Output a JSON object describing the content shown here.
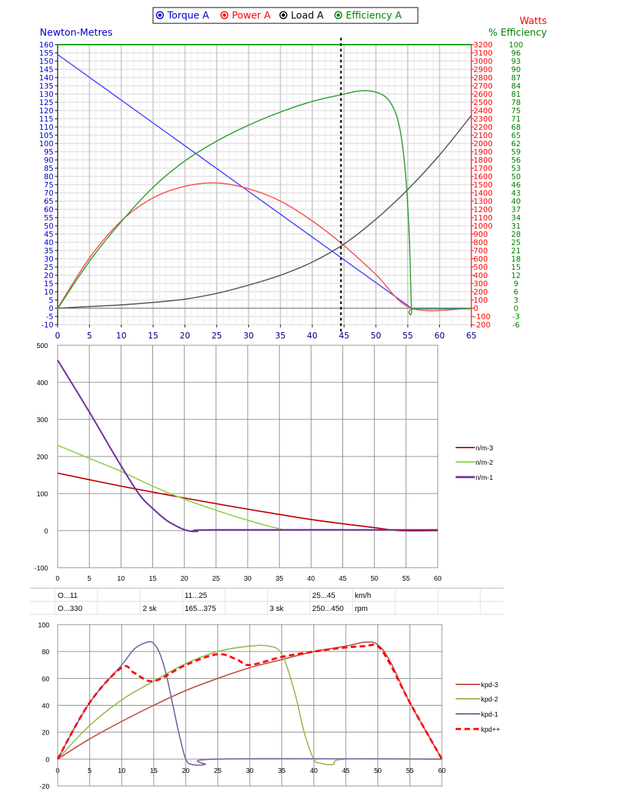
{
  "chart_data": [
    {
      "type": "line",
      "title": "",
      "legend": [
        {
          "name": "Torque  A",
          "color": "#3333ff"
        },
        {
          "name": "Power  A",
          "color": "#ff2020"
        },
        {
          "name": "Load  A",
          "color": "#000000"
        },
        {
          "name": "Efficiency  A",
          "color": "#00a000"
        }
      ],
      "ylabel_left": "Newton-Metres",
      "ylabel_right_watts": "Watts",
      "ylabel_right_eff": "% Efficiency",
      "xlim": [
        0,
        65
      ],
      "ylim_left": [
        -10,
        160
      ],
      "ylim_watts": [
        -200,
        3200
      ],
      "ylim_eff": [
        -6,
        100
      ],
      "x_ticks": [
        "0",
        "5",
        "10",
        "15",
        "20",
        "25",
        "30",
        "35",
        "40",
        "45",
        "50",
        "55",
        "60",
        "65"
      ],
      "y_left_ticks": [
        "160",
        "155",
        "150",
        "145",
        "140",
        "135",
        "130",
        "125",
        "120",
        "115",
        "110",
        "105",
        "100",
        "95",
        "90",
        "85",
        "80",
        "75",
        "70",
        "65",
        "60",
        "55",
        "50",
        "45",
        "40",
        "35",
        "30",
        "25",
        "20",
        "15",
        "10",
        "5",
        "0",
        "-5",
        "-10"
      ],
      "y_watts_ticks": [
        "3200",
        "3100",
        "3000",
        "2900",
        "2800",
        "2700",
        "2600",
        "2500",
        "2400",
        "2300",
        "2200",
        "2100",
        "2000",
        "1900",
        "1800",
        "1700",
        "1600",
        "1500",
        "1400",
        "1300",
        "1200",
        "1100",
        "1000",
        "900",
        "800",
        "700",
        "600",
        "500",
        "400",
        "300",
        "200",
        "100",
        "0",
        "-100",
        "-200"
      ],
      "y_eff_ticks": [
        "100",
        "96",
        "93",
        "90",
        "87",
        "84",
        "81",
        "78",
        "75",
        "71",
        "68",
        "65",
        "62",
        "59",
        "56",
        "53",
        "50",
        "46",
        "43",
        "40",
        "37",
        "34",
        "31",
        "28",
        "25",
        "21",
        "18",
        "15",
        "12",
        "9",
        "6",
        "3",
        "0",
        "-3",
        "-6"
      ],
      "marker_x": 44.5,
      "grid": true,
      "series": [
        {
          "name": "Torque  A",
          "color": "#4a4aff",
          "axis": "left",
          "x": [
            0,
            55.6,
            65
          ],
          "y": [
            154,
            0,
            0
          ]
        },
        {
          "name": "Power  A",
          "color": "#ff5050",
          "axis": "watts",
          "x": [
            0,
            5,
            10,
            15,
            20,
            25,
            30,
            35,
            40,
            45,
            50,
            55.6,
            65
          ],
          "y": [
            0,
            610,
            1060,
            1340,
            1480,
            1520,
            1450,
            1300,
            1060,
            760,
            410,
            0,
            0
          ]
        },
        {
          "name": "Load  A",
          "color": "#555555",
          "axis": "left",
          "x": [
            0,
            5,
            10,
            15,
            20,
            25,
            30,
            35,
            40,
            45,
            50,
            55,
            60,
            65
          ],
          "y": [
            0,
            1,
            2,
            3.5,
            5.5,
            9,
            14,
            20,
            28,
            39,
            54,
            72,
            93,
            117
          ]
        },
        {
          "name": "Efficiency  A",
          "color": "#33a033",
          "axis": "eff",
          "x": [
            0,
            5,
            10,
            15,
            20,
            25,
            30,
            35,
            40,
            44.5,
            47.5,
            50,
            52,
            53.5,
            54.5,
            55.2,
            55.6,
            56,
            65
          ],
          "y": [
            0,
            18,
            33,
            46,
            56,
            63.5,
            69.5,
            74.5,
            78.5,
            81,
            82.5,
            82,
            79,
            71,
            55,
            30,
            0,
            0,
            0
          ]
        }
      ]
    },
    {
      "type": "line",
      "xlim": [
        0,
        60
      ],
      "ylim": [
        -100,
        500
      ],
      "x_ticks": [
        "0",
        "5",
        "10",
        "15",
        "20",
        "25",
        "30",
        "35",
        "40",
        "45",
        "50",
        "55",
        "60"
      ],
      "y_ticks": [
        "500",
        "400",
        "300",
        "200",
        "100",
        "0",
        "-100"
      ],
      "grid": true,
      "legend": [
        "n/m-3",
        "n/m-2",
        "n/m-1"
      ],
      "series": [
        {
          "name": "n/m-3",
          "color": "#c00000",
          "x": [
            0,
            10,
            20,
            30,
            40,
            50,
            54,
            60
          ],
          "y": [
            155,
            120,
            88,
            58,
            30,
            8,
            0,
            0
          ]
        },
        {
          "name": "n/m-2",
          "color": "#92d050",
          "x": [
            0,
            5,
            10,
            15,
            20,
            25,
            30,
            35,
            37,
            60
          ],
          "y": [
            230,
            195,
            160,
            120,
            85,
            55,
            28,
            5,
            2,
            2
          ]
        },
        {
          "name": "n/m-1",
          "color": "#7030a0",
          "x": [
            0,
            5,
            10,
            13,
            15,
            17,
            19,
            20.5,
            22,
            25,
            60
          ],
          "y": [
            460,
            320,
            175,
            95,
            60,
            30,
            10,
            0,
            -2,
            2,
            2
          ]
        }
      ]
    },
    {
      "type": "table",
      "rows": [
        [
          "O...11",
          "",
          "",
          "11...25",
          "",
          "25...45",
          "km/h"
        ],
        [
          "O...330",
          "",
          "2 sk",
          "165...375",
          "3 sk",
          "250...450",
          "rpm"
        ]
      ]
    },
    {
      "type": "line",
      "xlim": [
        0,
        60
      ],
      "ylim": [
        -20,
        100
      ],
      "x_ticks": [
        "0",
        "5",
        "10",
        "15",
        "20",
        "25",
        "30",
        "35",
        "40",
        "45",
        "50",
        "55",
        "60"
      ],
      "y_ticks": [
        "100",
        "80",
        "60",
        "40",
        "20",
        "0",
        "-20"
      ],
      "grid": true,
      "legend": [
        "kpd-3",
        "kpd-2",
        "kpd-1",
        "kpd++"
      ],
      "series": [
        {
          "name": "kpd-3",
          "color": "#c0504d",
          "x": [
            0,
            5,
            10,
            15,
            20,
            25,
            30,
            35,
            40,
            45,
            48,
            50,
            52,
            55,
            60
          ],
          "y": [
            0,
            15,
            28,
            40,
            51,
            60,
            68,
            74,
            80,
            84,
            87,
            85,
            72,
            42,
            0
          ]
        },
        {
          "name": "kpd-2",
          "color": "#9bbb59",
          "x": [
            0,
            5,
            10,
            15,
            20,
            25,
            30,
            33,
            35,
            37,
            38.5,
            40,
            41,
            43,
            45,
            60
          ],
          "y": [
            0,
            25,
            44,
            58,
            71,
            80,
            84,
            84,
            78,
            50,
            20,
            0,
            -3,
            -4,
            0,
            0
          ]
        },
        {
          "name": "kpd-1",
          "color": "#8064a2",
          "x": [
            0,
            5,
            10,
            12,
            14,
            15,
            16,
            17,
            18,
            19,
            20,
            21,
            23,
            25,
            60
          ],
          "y": [
            0,
            42,
            70,
            82,
            87,
            86,
            78,
            62,
            40,
            18,
            0,
            -4,
            -4,
            0,
            0
          ]
        },
        {
          "name": "kpd++",
          "color": "#ff0000",
          "x": [
            0,
            5,
            10,
            12,
            15,
            20,
            25,
            28,
            30,
            35,
            40,
            45,
            48,
            50,
            52,
            55,
            60
          ],
          "y": [
            0,
            42,
            68,
            64,
            58,
            70,
            78,
            74,
            70,
            76,
            80,
            83,
            84,
            84,
            70,
            42,
            0
          ]
        }
      ]
    }
  ]
}
